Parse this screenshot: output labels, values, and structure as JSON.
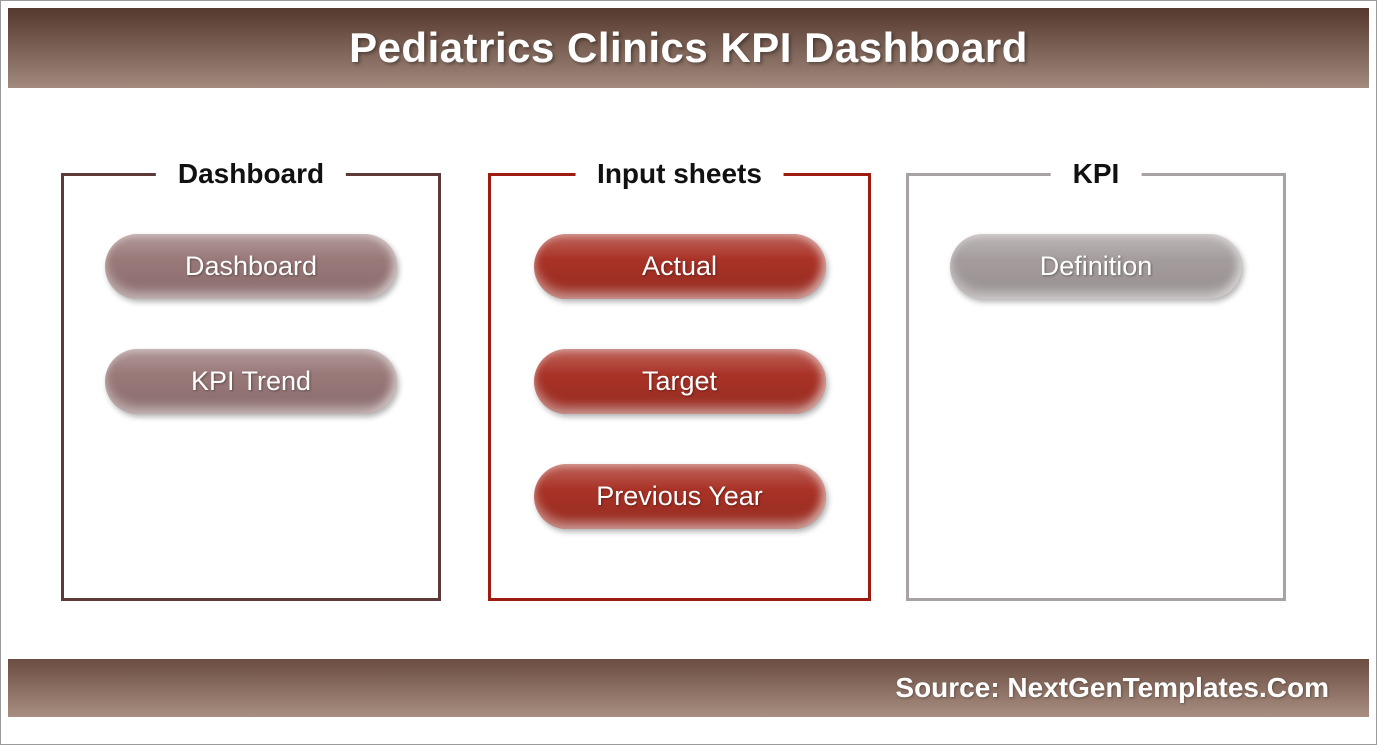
{
  "header": {
    "title": "Pediatrics Clinics KPI Dashboard"
  },
  "panels": [
    {
      "title": "Dashboard",
      "buttons": [
        "Dashboard",
        "KPI Trend"
      ],
      "border_color": "#5d3a38",
      "button_color": "#997878"
    },
    {
      "title": "Input sheets",
      "buttons": [
        "Actual",
        "Target",
        "Previous Year"
      ],
      "border_color": "#9e1b10",
      "button_color": "#a93226"
    },
    {
      "title": "KPI",
      "buttons": [
        "Definition"
      ],
      "border_color": "#a8a2a2",
      "button_color": "#a49c9c"
    }
  ],
  "footer": {
    "source": "Source: NextGenTemplates.Com"
  },
  "colors": {
    "header-grad-top": "#55382e",
    "header-grad-bottom": "#a28a7d",
    "footer-grad-top": "#6b4c40",
    "footer-grad-bottom": "#a88f82",
    "panel1-border": "#5d3a38",
    "panel1-button": "#997878",
    "panel2-border": "#9e1b10",
    "panel2-button": "#a93226",
    "panel3-border": "#a8a2a2",
    "panel3-button": "#a49c9c"
  }
}
